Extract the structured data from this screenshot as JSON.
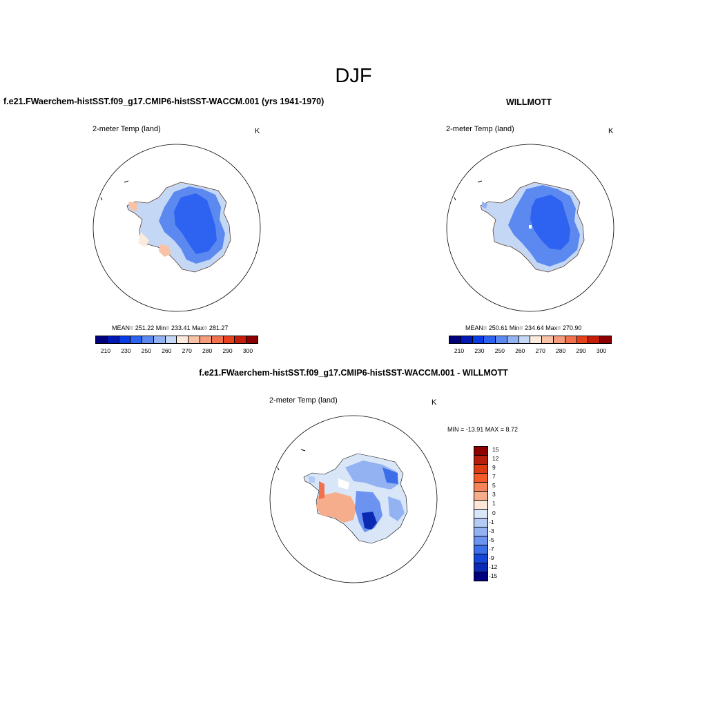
{
  "title": "DJF",
  "panels": {
    "model": {
      "case_title": "f.e21.FWaerchem-histSST.f09_g17.CMIP6-histSST-WACCM.001 (yrs 1941-1970)",
      "variable": "2-meter Temp (land)",
      "units": "K",
      "stats": "MEAN= 251.22  Min= 233.41  Max= 281.27"
    },
    "obs": {
      "case_title": "WILLMOTT",
      "variable": "2-meter Temp (land)",
      "units": "K",
      "stats": "MEAN= 250.61  Min= 234.64  Max= 270.90"
    },
    "diff": {
      "case_title": "f.e21.FWaerchem-histSST.f09_g17.CMIP6-histSST-WACCM.001 - WILLMOTT",
      "variable": "2-meter Temp (land)",
      "units": "K",
      "stats": "MIN = -13.91 MAX =   8.72"
    }
  },
  "colorbar_abs": {
    "colors": [
      "#00007d",
      "#0019b5",
      "#0a3ce6",
      "#2e62f0",
      "#5c89f0",
      "#93b2f2",
      "#c4d8f5",
      "#fbebdc",
      "#f7c2a5",
      "#f59c7c",
      "#f2714d",
      "#e8411e",
      "#c41e0a",
      "#8c0000"
    ],
    "tick_labels": [
      "210",
      "230",
      "250",
      "260",
      "270",
      "280",
      "290",
      "300"
    ]
  },
  "colorbar_diff": {
    "colors": [
      "#8c0000",
      "#b51e0a",
      "#dd3b12",
      "#f55a28",
      "#f5845a",
      "#f5ad8c",
      "#fce6d6",
      "#d9e6f8",
      "#b4cbf5",
      "#93b2f2",
      "#6d93f0",
      "#3c6ee8",
      "#1446d8",
      "#0a2ab4",
      "#00007d"
    ],
    "tick_labels": [
      "15",
      "12",
      "9",
      "7",
      "5",
      "3",
      "1",
      "0",
      "-1",
      "-3",
      "-5",
      "-7",
      "-9",
      "-12",
      "-15"
    ]
  }
}
